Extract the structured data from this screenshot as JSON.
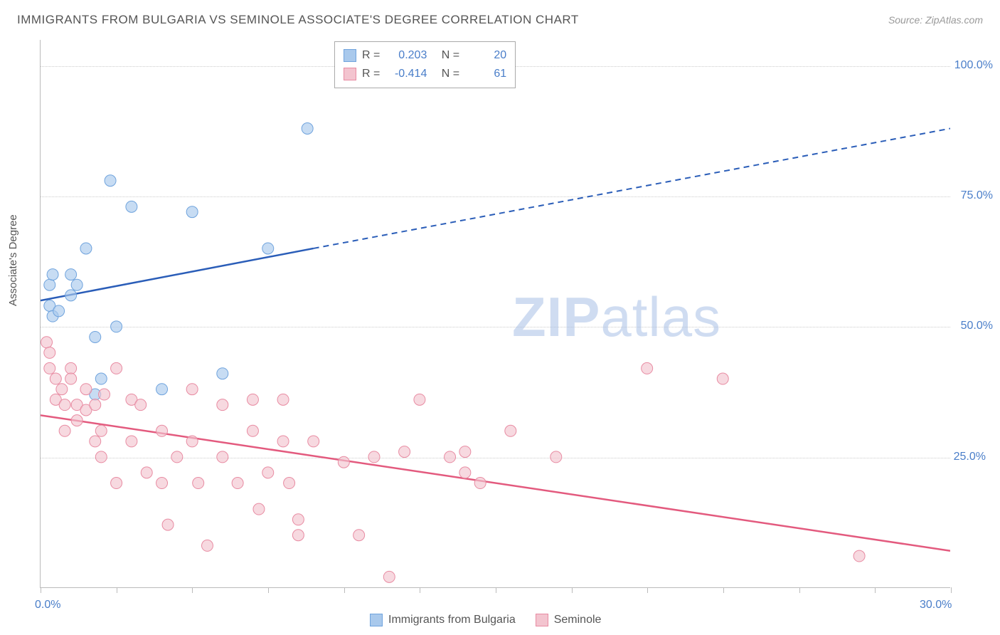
{
  "title": "IMMIGRANTS FROM BULGARIA VS SEMINOLE ASSOCIATE'S DEGREE CORRELATION CHART",
  "source": "Source: ZipAtlas.com",
  "y_axis_label": "Associate's Degree",
  "watermark_a": "ZIP",
  "watermark_b": "atlas",
  "chart": {
    "type": "scatter",
    "xlim": [
      0,
      30
    ],
    "ylim": [
      0,
      105
    ],
    "y_ticks": [
      25.0,
      50.0,
      75.0,
      100.0
    ],
    "y_tick_labels": [
      "25.0%",
      "50.0%",
      "75.0%",
      "100.0%"
    ],
    "x_tick_labels": {
      "start": "0.0%",
      "end": "30.0%"
    },
    "x_tick_count": 12,
    "grid_color": "#cccccc",
    "axis_color": "#bbbbbb",
    "background_color": "#ffffff"
  },
  "series": [
    {
      "name": "Immigrants from Bulgaria",
      "color_fill": "#a9c9ec",
      "color_stroke": "#6fa3dd",
      "line_color": "#2a5db8",
      "R": "0.203",
      "N": "20",
      "trend": {
        "x1": 0,
        "y1": 55,
        "x2": 9,
        "y2": 65,
        "x3": 30,
        "y3": 88,
        "solid_until_x": 9
      },
      "points": [
        [
          0.3,
          54
        ],
        [
          0.3,
          58
        ],
        [
          0.4,
          60
        ],
        [
          0.4,
          52
        ],
        [
          0.6,
          53
        ],
        [
          1.0,
          56
        ],
        [
          1.0,
          60
        ],
        [
          1.2,
          58
        ],
        [
          1.5,
          65
        ],
        [
          1.8,
          48
        ],
        [
          1.8,
          37
        ],
        [
          2.0,
          40
        ],
        [
          2.3,
          78
        ],
        [
          2.5,
          50
        ],
        [
          3.0,
          73
        ],
        [
          4.0,
          38
        ],
        [
          5.0,
          72
        ],
        [
          6.0,
          41
        ],
        [
          7.5,
          65
        ],
        [
          8.8,
          88
        ]
      ]
    },
    {
      "name": "Seminole",
      "color_fill": "#f3c4cf",
      "color_stroke": "#e88ba2",
      "line_color": "#e35a7e",
      "R": "-0.414",
      "N": "61",
      "trend": {
        "x1": 0,
        "y1": 33,
        "x2": 30,
        "y2": 7,
        "solid_until_x": 30
      },
      "points": [
        [
          0.2,
          47
        ],
        [
          0.3,
          45
        ],
        [
          0.3,
          42
        ],
        [
          0.5,
          40
        ],
        [
          0.5,
          36
        ],
        [
          0.7,
          38
        ],
        [
          0.8,
          35
        ],
        [
          0.8,
          30
        ],
        [
          1.0,
          42
        ],
        [
          1.0,
          40
        ],
        [
          1.2,
          35
        ],
        [
          1.2,
          32
        ],
        [
          1.5,
          38
        ],
        [
          1.5,
          34
        ],
        [
          1.8,
          35
        ],
        [
          1.8,
          28
        ],
        [
          2.0,
          30
        ],
        [
          2.0,
          25
        ],
        [
          2.1,
          37
        ],
        [
          2.5,
          42
        ],
        [
          2.5,
          20
        ],
        [
          3.0,
          36
        ],
        [
          3.0,
          28
        ],
        [
          3.3,
          35
        ],
        [
          3.5,
          22
        ],
        [
          4.0,
          30
        ],
        [
          4.0,
          20
        ],
        [
          4.2,
          12
        ],
        [
          4.5,
          25
        ],
        [
          5.0,
          38
        ],
        [
          5.0,
          28
        ],
        [
          5.2,
          20
        ],
        [
          5.5,
          8
        ],
        [
          6.0,
          35
        ],
        [
          6.0,
          25
        ],
        [
          6.5,
          20
        ],
        [
          7.0,
          36
        ],
        [
          7.0,
          30
        ],
        [
          7.2,
          15
        ],
        [
          7.5,
          22
        ],
        [
          8.0,
          36
        ],
        [
          8.0,
          28
        ],
        [
          8.2,
          20
        ],
        [
          8.5,
          13
        ],
        [
          8.5,
          10
        ],
        [
          9.0,
          28
        ],
        [
          10.0,
          24
        ],
        [
          10.5,
          10
        ],
        [
          11.0,
          25
        ],
        [
          11.5,
          2
        ],
        [
          12.0,
          26
        ],
        [
          12.5,
          36
        ],
        [
          13.5,
          25
        ],
        [
          14.0,
          26
        ],
        [
          14.0,
          22
        ],
        [
          14.5,
          20
        ],
        [
          15.5,
          30
        ],
        [
          17.0,
          25
        ],
        [
          20.0,
          42
        ],
        [
          22.5,
          40
        ],
        [
          27.0,
          6
        ]
      ]
    }
  ],
  "legend_top": {
    "R_label": "R =",
    "N_label": "N ="
  },
  "legend_bottom": {
    "items": [
      "Immigrants from Bulgaria",
      "Seminole"
    ]
  }
}
